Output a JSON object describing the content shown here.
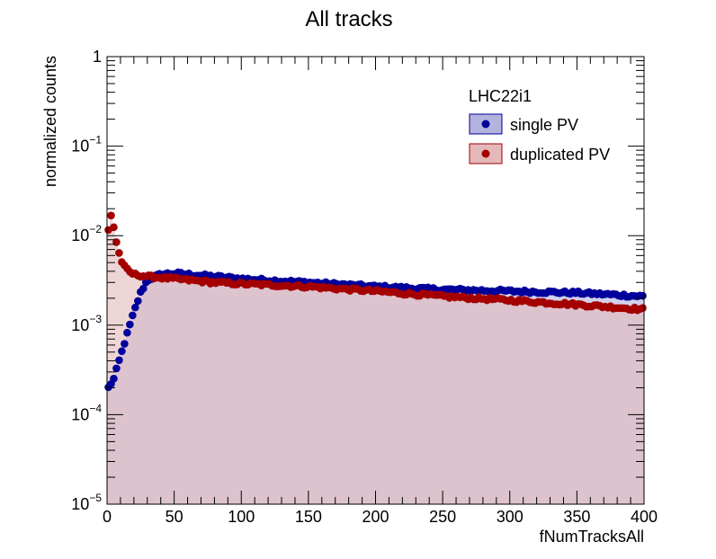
{
  "chart_data": {
    "type": "scatter",
    "title": "All tracks",
    "xlabel": "fNumTracksAll",
    "ylabel": "normalized counts",
    "xlim": [
      0,
      400
    ],
    "ylim": [
      1e-05,
      1
    ],
    "yscale": "log",
    "x_ticks": [
      0,
      50,
      100,
      150,
      200,
      250,
      300,
      350,
      400
    ],
    "x_tick_labels": [
      "0",
      "50",
      "100",
      "150",
      "200",
      "250",
      "300",
      "350",
      "400"
    ],
    "y_ticks": [
      1e-05,
      0.0001,
      0.001,
      0.01,
      0.1,
      1
    ],
    "y_tick_base": [
      "10",
      "10",
      "10",
      "10",
      "10",
      "1"
    ],
    "y_tick_exp": [
      "−5",
      "−4",
      "−3",
      "−2",
      "−1",
      ""
    ],
    "grid": false,
    "legend": {
      "title": "LHC22i1",
      "placement": "top-right",
      "entries": [
        "single PV",
        "duplicated PV"
      ]
    },
    "series": [
      {
        "name": "single PV",
        "color": "#00009c",
        "fill": "#b3b3dd",
        "x": [
          1,
          5,
          10,
          15,
          20,
          25,
          30,
          40,
          50,
          60,
          80,
          100,
          150,
          200,
          250,
          300,
          350,
          400
        ],
        "y": [
          0.0002,
          0.00025,
          0.00045,
          0.0008,
          0.0014,
          0.0023,
          0.0032,
          0.0037,
          0.0038,
          0.0037,
          0.0035,
          0.0033,
          0.003,
          0.0027,
          0.0025,
          0.0024,
          0.0023,
          0.0021
        ]
      },
      {
        "name": "duplicated PV",
        "color": "#a40000",
        "fill": "#e3b9b9",
        "x": [
          1,
          3,
          5,
          7,
          10,
          13,
          16,
          20,
          25,
          30,
          40,
          50,
          60,
          80,
          100,
          150,
          200,
          250,
          300,
          350,
          400
        ],
        "y": [
          0.0115,
          0.017,
          0.0125,
          0.0085,
          0.0055,
          0.0045,
          0.004,
          0.0037,
          0.0036,
          0.0035,
          0.0034,
          0.0033,
          0.0032,
          0.003,
          0.0029,
          0.0027,
          0.0024,
          0.0021,
          0.0019,
          0.0017,
          0.0015
        ]
      }
    ]
  }
}
